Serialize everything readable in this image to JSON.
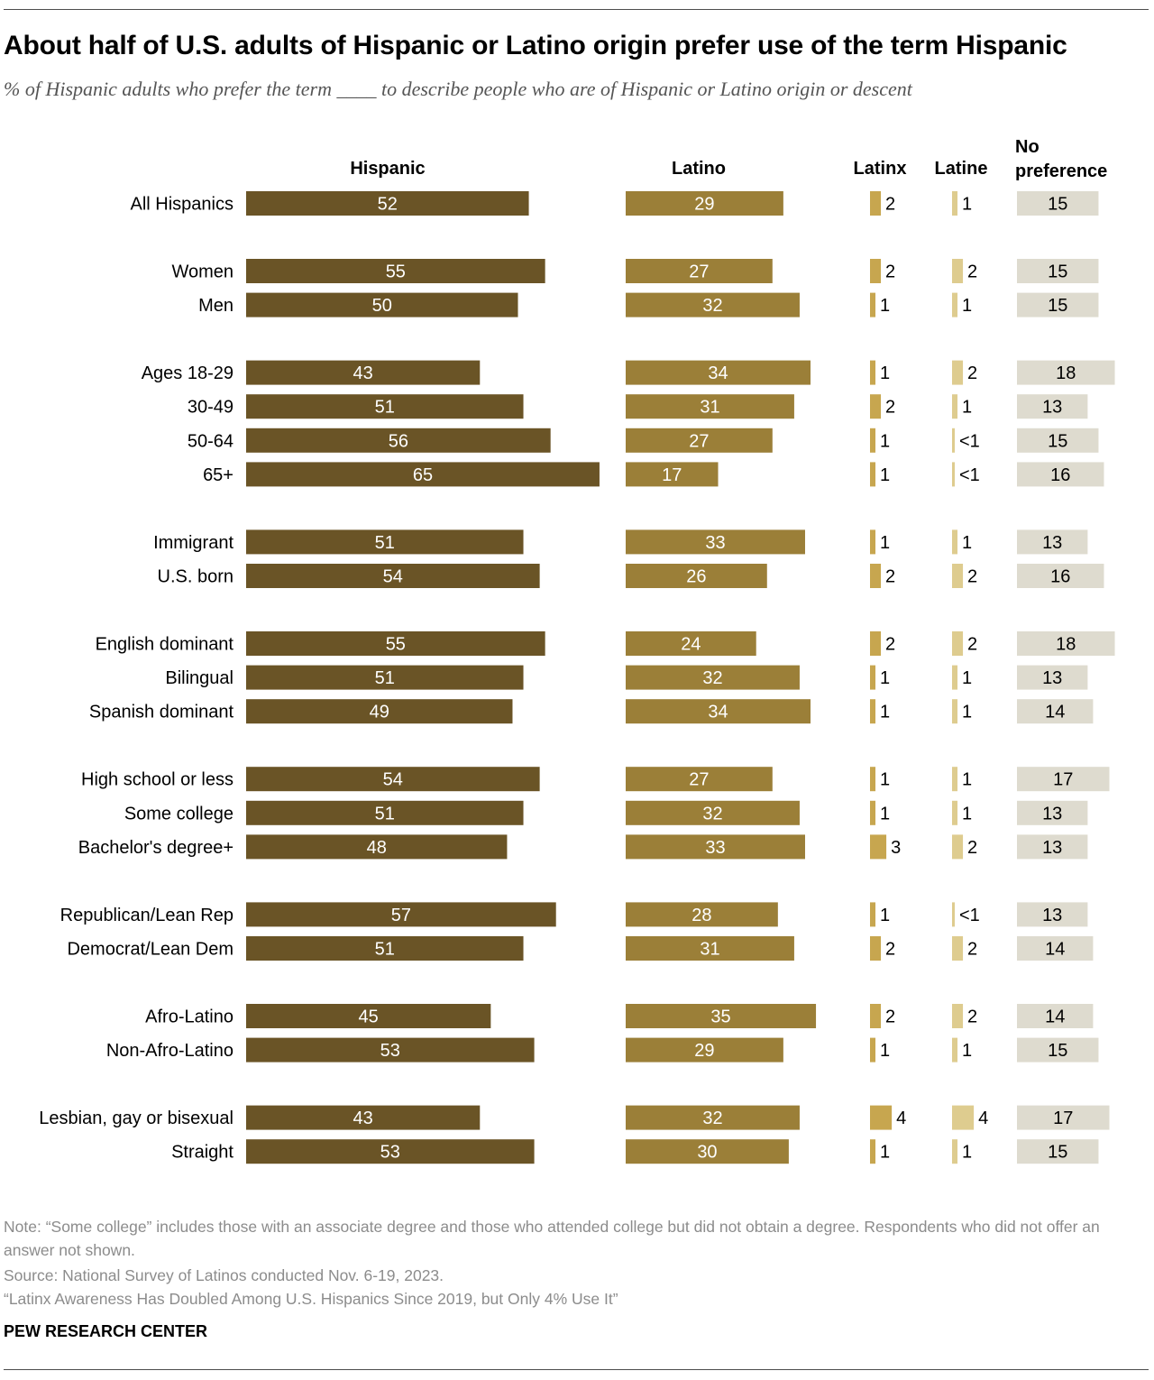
{
  "title": "About half of U.S. adults of Hispanic or Latino origin prefer use of the term Hispanic",
  "subtitle": "% of Hispanic adults who prefer the term ____ to describe people who are of Hispanic or Latino origin or descent",
  "colors": {
    "hispanic": "#6a5426",
    "latino": "#9b7f38",
    "latinx": "#c7a64f",
    "latine": "#decc8f",
    "no_preference": "#dedbcf",
    "label_light": "#ffffff",
    "label_dark": "#000000"
  },
  "chart_data": {
    "type": "bar",
    "orientation": "horizontal",
    "layout": "stacked columns side by side",
    "title": "About half of U.S. adults of Hispanic or Latino origin prefer use of the term Hispanic",
    "unit": "%",
    "series": [
      {
        "key": "hispanic",
        "name": "Hispanic",
        "label_lines": [
          "Hispanic"
        ],
        "values": [
          52,
          55,
          50,
          43,
          51,
          56,
          65,
          51,
          54,
          55,
          51,
          49,
          54,
          51,
          48,
          57,
          51,
          45,
          53,
          43,
          53
        ],
        "labels": [
          "52",
          "55",
          "50",
          "43",
          "51",
          "56",
          "65",
          "51",
          "54",
          "55",
          "51",
          "49",
          "54",
          "51",
          "48",
          "57",
          "51",
          "45",
          "53",
          "43",
          "53"
        ]
      },
      {
        "key": "latino",
        "name": "Latino",
        "label_lines": [
          "Latino"
        ],
        "values": [
          29,
          27,
          32,
          34,
          31,
          27,
          17,
          33,
          26,
          24,
          32,
          34,
          27,
          32,
          33,
          28,
          31,
          35,
          29,
          32,
          30
        ],
        "labels": [
          "29",
          "27",
          "32",
          "34",
          "31",
          "27",
          "17",
          "33",
          "26",
          "24",
          "32",
          "34",
          "27",
          "32",
          "33",
          "28",
          "31",
          "35",
          "29",
          "32",
          "30"
        ]
      },
      {
        "key": "latinx",
        "name": "Latinx",
        "label_lines": [
          "Latinx"
        ],
        "values": [
          2,
          2,
          1,
          1,
          2,
          1,
          1,
          1,
          2,
          2,
          1,
          1,
          1,
          1,
          3,
          1,
          2,
          2,
          1,
          4,
          1
        ],
        "labels": [
          "2",
          "2",
          "1",
          "1",
          "2",
          "1",
          "1",
          "1",
          "2",
          "2",
          "1",
          "1",
          "1",
          "1",
          "3",
          "1",
          "2",
          "2",
          "1",
          "4",
          "1"
        ]
      },
      {
        "key": "latine",
        "name": "Latine",
        "label_lines": [
          "Latine"
        ],
        "values": [
          1,
          2,
          1,
          2,
          1,
          0.4,
          0.4,
          1,
          2,
          2,
          1,
          1,
          1,
          1,
          2,
          0.4,
          2,
          2,
          1,
          4,
          1
        ],
        "labels": [
          "1",
          "2",
          "1",
          "2",
          "1",
          "<1",
          "<1",
          "1",
          "2",
          "2",
          "1",
          "1",
          "1",
          "1",
          "2",
          "<1",
          "2",
          "2",
          "1",
          "4",
          "1"
        ]
      },
      {
        "key": "no_preference",
        "name": "No preference",
        "label_lines": [
          "No",
          "preference"
        ],
        "values": [
          15,
          15,
          15,
          18,
          13,
          15,
          16,
          13,
          16,
          18,
          13,
          14,
          17,
          13,
          13,
          13,
          14,
          14,
          15,
          17,
          15
        ],
        "labels": [
          "15",
          "15",
          "15",
          "18",
          "13",
          "15",
          "16",
          "13",
          "16",
          "18",
          "13",
          "14",
          "17",
          "13",
          "13",
          "13",
          "14",
          "14",
          "15",
          "17",
          "15"
        ]
      }
    ],
    "groups": [
      [
        "All Hispanics"
      ],
      [
        "Women",
        "Men"
      ],
      [
        "Ages 18-29",
        "30-49",
        "50-64",
        "65+"
      ],
      [
        "Immigrant",
        "U.S. born"
      ],
      [
        "English dominant",
        "Bilingual",
        "Spanish dominant"
      ],
      [
        "High school or less",
        "Some college",
        "Bachelor's degree+"
      ],
      [
        "Republican/Lean Rep",
        "Democrat/Lean Dem"
      ],
      [
        "Afro-Latino",
        "Non-Afro-Latino"
      ],
      [
        "Lesbian, gay or bisexual",
        "Straight"
      ]
    ],
    "categories": [
      "All Hispanics",
      "Women",
      "Men",
      "Ages 18-29",
      "30-49",
      "50-64",
      "65+",
      "Immigrant",
      "U.S. born",
      "English dominant",
      "Bilingual",
      "Spanish dominant",
      "High school or less",
      "Some college",
      "Bachelor's degree+",
      "Republican/Lean Rep",
      "Democrat/Lean Dem",
      "Afro-Latino",
      "Non-Afro-Latino",
      "Lesbian, gay or bisexual",
      "Straight"
    ],
    "xlim": [
      0,
      100
    ],
    "grid": false,
    "legend": "column headers"
  },
  "notes": {
    "note": "Note: “Some college” includes those with an associate degree and those who attended college but did not obtain a degree. Respondents who did not offer an answer not shown.",
    "source": "Source: National Survey of Latinos conducted Nov. 6-19, 2023.",
    "report": "“Latinx Awareness Has Doubled Among U.S. Hispanics Since 2019, but Only 4% Use It”",
    "brand": "PEW RESEARCH CENTER"
  }
}
